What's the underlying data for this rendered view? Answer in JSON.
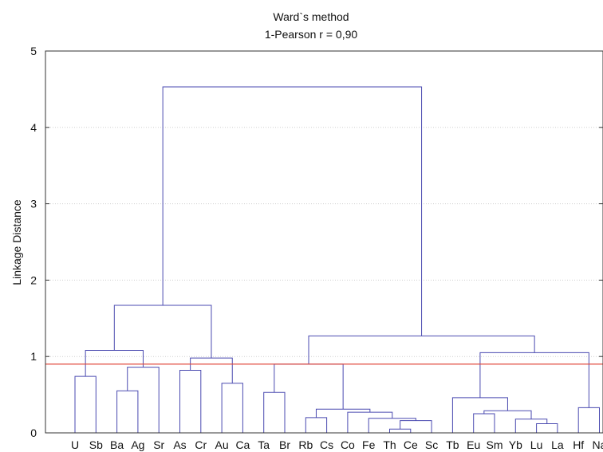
{
  "chart_data": {
    "type": "dendrogram",
    "title": "Ward`s method",
    "subtitle": "1-Pearson r = 0,90",
    "ylabel": "Linkage Distance",
    "xlabel": "",
    "ylim": [
      0,
      5
    ],
    "yticks": [
      "0",
      "1",
      "2",
      "3",
      "4",
      "5"
    ],
    "grid": true,
    "cut_line": {
      "value": 0.9,
      "color": "#e0493c"
    },
    "branch_color": "#4a4ab0",
    "leaves": [
      "U",
      "Sb",
      "Ba",
      "Ag",
      "Sr",
      "As",
      "Cr",
      "Au",
      "Ca",
      "Ta",
      "Br",
      "Rb",
      "Cs",
      "Co",
      "Fe",
      "Th",
      "Ce",
      "Sc",
      "Tb",
      "Eu",
      "Sm",
      "Yb",
      "Lu",
      "La",
      "Hf",
      "Na"
    ],
    "merges": [
      {
        "left": "U",
        "right": "Sb",
        "height": 0.74
      },
      {
        "left": "Ba",
        "right": "Ag",
        "height": 0.55
      },
      {
        "left": "M2",
        "right": "Sr",
        "height": 0.86
      },
      {
        "left": "M1",
        "right": "M3",
        "height": 1.08
      },
      {
        "left": "As",
        "right": "Cr",
        "height": 0.82
      },
      {
        "left": "Au",
        "right": "Ca",
        "height": 0.65
      },
      {
        "left": "M5",
        "right": "M6",
        "height": 0.98
      },
      {
        "left": "M4",
        "right": "M7",
        "height": 1.67
      },
      {
        "left": "Ta",
        "right": "Br",
        "height": 0.53
      },
      {
        "left": "Rb",
        "right": "Cs",
        "height": 0.2
      },
      {
        "left": "Th",
        "right": "Ce",
        "height": 0.05
      },
      {
        "left": "M11",
        "right": "Sc",
        "height": 0.16
      },
      {
        "left": "Fe",
        "right": "M12",
        "height": 0.19
      },
      {
        "left": "Co",
        "right": "M13",
        "height": 0.27
      },
      {
        "left": "M10",
        "right": "M14",
        "height": 0.31
      },
      {
        "left": "M9",
        "right": "M15",
        "height": 0.9
      },
      {
        "left": "Eu",
        "right": "Sm",
        "height": 0.25
      },
      {
        "left": "Lu",
        "right": "La",
        "height": 0.12
      },
      {
        "left": "Yb",
        "right": "M18",
        "height": 0.18
      },
      {
        "left": "M17",
        "right": "M19",
        "height": 0.29
      },
      {
        "left": "Tb",
        "right": "M20",
        "height": 0.46
      },
      {
        "left": "Hf",
        "right": "Na",
        "height": 0.33
      },
      {
        "left": "M21",
        "right": "M22",
        "height": 1.05
      },
      {
        "left": "M16",
        "right": "M23",
        "height": 1.27
      },
      {
        "left": "M8",
        "right": "M24",
        "height": 4.53
      }
    ]
  }
}
